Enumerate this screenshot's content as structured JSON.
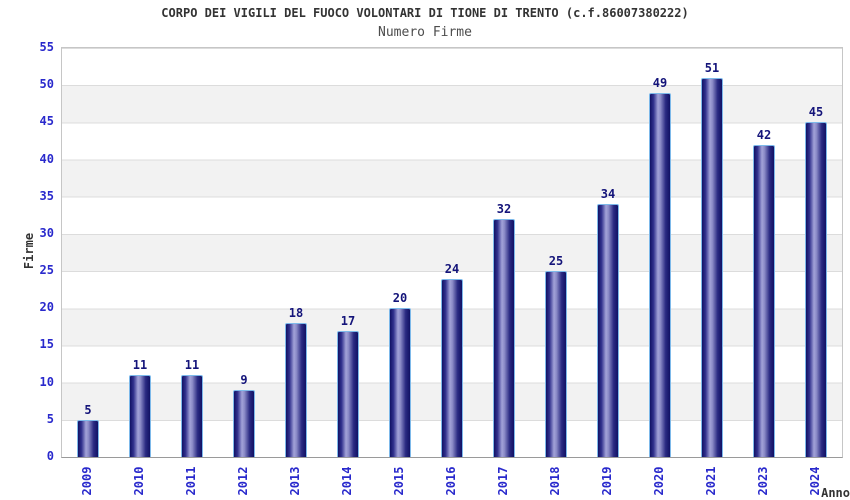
{
  "title": "CORPO DEI VIGILI DEL FUOCO VOLONTARI DI TIONE DI TRENTO (c.f.86007380222)",
  "subtitle": "Numero Firme",
  "chart_data": {
    "type": "bar",
    "title": "CORPO DEI VIGILI DEL FUOCO VOLONTARI DI TIONE DI TRENTO (c.f.86007380222)",
    "subtitle": "Numero Firme",
    "categories": [
      "2009",
      "2010",
      "2011",
      "2012",
      "2013",
      "2014",
      "2015",
      "2016",
      "2017",
      "2018",
      "2019",
      "2020",
      "2021",
      "2023",
      "2024"
    ],
    "values": [
      5,
      11,
      11,
      9,
      18,
      17,
      20,
      24,
      32,
      25,
      34,
      49,
      51,
      42,
      45
    ],
    "xlabel": "Anno",
    "ylabel": "Firme",
    "ylim": [
      0,
      55
    ],
    "ytick_step": 5,
    "grid": "horizontal-bands-alternating",
    "legend": "none",
    "value_labels": "above-bars",
    "note": "year 2022 absent from category axis",
    "colors": {
      "bar_edge": "#111164",
      "bar_center": "#a2a2d8",
      "bar_border_highlight": "#7db9ea",
      "tick_labels": "#2929cc",
      "value_labels": "#14147a",
      "title_text": "#333333",
      "subtitle_text": "#4d4d4d",
      "band_grey": "#f2f2f2",
      "grid_line": "#dcdcdc",
      "background": "#ffffff"
    }
  }
}
